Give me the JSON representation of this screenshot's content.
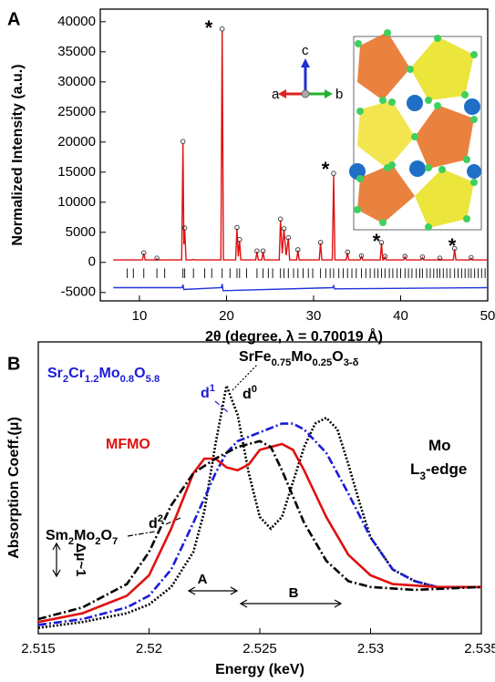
{
  "chart_data": [
    {
      "type": "line",
      "panel": "A",
      "ylabel": "Normalized Intensity (a.u.)",
      "xlabel": "2θ (degree, λ = 0.70019 Å)",
      "xlim": [
        5.5,
        50
      ],
      "xticks": [
        10,
        20,
        30,
        40,
        50
      ],
      "ylim": [
        -6400,
        42100
      ],
      "yticks": [
        -5000,
        0,
        5000,
        10000,
        15000,
        20000,
        25000,
        30000,
        35000,
        40000
      ],
      "annotations": [
        "*",
        "*",
        "*",
        "*"
      ],
      "inset_axes": [
        "a",
        "b",
        "c"
      ],
      "series": [
        {
          "style": "line",
          "color": "#e01010",
          "x": [
            7,
            10.35,
            10.5,
            10.65,
            11.85,
            12,
            12.15,
            14.85,
            15,
            15.1,
            15.2,
            15.35,
            16.05,
            16.2,
            16.35,
            17.35,
            17.5,
            17.65,
            19.35,
            19.5,
            19.65,
            21.05,
            21.2,
            21.35,
            21.5,
            21.65,
            23.35,
            23.5,
            23.65,
            24.05,
            24.2,
            24.35,
            26.05,
            26.2,
            26.4,
            26.6,
            26.85,
            27.1,
            27.25,
            28.05,
            28.2,
            28.35,
            30.65,
            30.8,
            30.95,
            32.15,
            32.3,
            32.45,
            33.75,
            33.9,
            34.05,
            35.35,
            35.5,
            35.65,
            37.65,
            37.8,
            37.95,
            38.05,
            38.2,
            38.35,
            40.35,
            40.5,
            40.65,
            42.35,
            42.5,
            42.65,
            44.35,
            44.5,
            44.65,
            46.05,
            46.2,
            46.35,
            47.95,
            48.1,
            48.25,
            50
          ],
          "values": [
            400,
            400,
            1500,
            400,
            400,
            600,
            400,
            400,
            19800,
            3000,
            5500,
            400,
            400,
            500,
            400,
            400,
            400,
            400,
            400,
            38500,
            400,
            400,
            5600,
            1000,
            3600,
            400,
            400,
            1800,
            400,
            400,
            1800,
            400,
            400,
            7000,
            1500,
            5500,
            1200,
            4000,
            400,
            400,
            2000,
            400,
            400,
            3200,
            400,
            400,
            14500,
            400,
            400,
            1600,
            400,
            400,
            1000,
            400,
            400,
            3200,
            400,
            400,
            900,
            400,
            400,
            900,
            400,
            400,
            800,
            400,
            400,
            600,
            400,
            400,
            2200,
            400,
            400,
            700,
            400,
            400
          ]
        },
        {
          "style": "markers",
          "color": "#333333",
          "x": [
            10.5,
            12,
            15,
            15.2,
            19.5,
            21.2,
            21.5,
            23.5,
            24.2,
            26.2,
            26.6,
            27.1,
            28.2,
            30.8,
            32.3,
            33.9,
            35.5,
            37.8,
            38.2,
            40.5,
            42.5,
            44.5,
            46.2,
            48.1
          ],
          "values": [
            1600,
            700,
            20100,
            5700,
            38800,
            5800,
            3800,
            1900,
            1900,
            7200,
            5600,
            4100,
            2100,
            3300,
            14800,
            1700,
            1100,
            3300,
            1000,
            1000,
            900,
            700,
            2300,
            800
          ]
        },
        {
          "style": "line",
          "color": "#2233dd",
          "x": [
            7,
            14.9,
            15,
            15.1,
            19.4,
            19.5,
            19.6,
            32.2,
            32.3,
            32.4,
            50
          ],
          "values": [
            -4200,
            -4200,
            -3700,
            -4500,
            -4200,
            -3600,
            -4700,
            -4200,
            -3900,
            -4400,
            -4200
          ]
        },
        {
          "style": "ticks",
          "color": "#000000",
          "x": [
            8.6,
            9.3,
            10.5,
            12,
            12.9,
            15,
            15.2,
            16.2,
            17.5,
            18.3,
            19.5,
            20.4,
            21.2,
            21.5,
            22.3,
            23.5,
            24.2,
            24.8,
            25.3,
            26.2,
            26.6,
            27.1,
            27.7,
            28.2,
            28.8,
            29.4,
            29.9,
            30.8,
            31.4,
            31.9,
            32.3,
            32.9,
            33.4,
            33.9,
            34.4,
            34.9,
            35.5,
            36.0,
            36.5,
            37.0,
            37.4,
            37.8,
            38.2,
            38.7,
            39.1,
            39.6,
            40.0,
            40.5,
            40.9,
            41.3,
            41.8,
            42.2,
            42.5,
            43.0,
            43.4,
            43.8,
            44.2,
            44.5,
            44.9,
            45.3,
            45.7,
            46.2,
            46.6,
            47.0,
            47.4,
            47.8,
            48.1,
            48.5,
            48.9,
            49.3,
            49.7
          ],
          "span": [
            -1000,
            -2600
          ]
        }
      ]
    },
    {
      "type": "line",
      "panel": "B",
      "xlabel": "Energy (keV)",
      "ylabel": "Absorption Coeff.(μ)",
      "xlim": [
        2.515,
        2.535
      ],
      "xticks": [
        2.515,
        2.52,
        2.525,
        2.53,
        2.535
      ],
      "ylim": [
        0,
        1
      ],
      "edge_label": [
        {
          "text": "Mo"
        }
      ],
      "edge_label2": [
        {
          "text": "L"
        },
        {
          "text": "3",
          "sub": true
        },
        {
          "text": "-edge"
        }
      ],
      "d_labels": [
        [
          {
            "text": "d"
          },
          {
            "text": "0",
            "sup": true
          }
        ],
        [
          {
            "text": "d"
          },
          {
            "text": "1",
            "sup": true
          }
        ],
        [
          {
            "text": "d"
          },
          {
            "text": "2",
            "sup": true
          }
        ]
      ],
      "delta_label": "Δμ~1",
      "regions": [
        "A",
        "B"
      ],
      "series": [
        {
          "name": [
            {
              "text": "SrFe"
            },
            {
              "text": "0.75",
              "sub": true
            },
            {
              "text": "Mo"
            },
            {
              "text": "0.25",
              "sub": true
            },
            {
              "text": "O"
            },
            {
              "text": "3-δ",
              "sub": true
            }
          ],
          "color": "#000000",
          "dash": "dotted",
          "x": [
            2.515,
            2.517,
            2.519,
            2.52,
            2.521,
            2.522,
            2.5225,
            2.523,
            2.5235,
            2.524,
            2.5245,
            2.525,
            2.5255,
            2.526,
            2.5265,
            2.527,
            2.5275,
            2.528,
            2.5285,
            2.529,
            2.5295,
            2.53,
            2.531,
            2.532,
            2.533,
            2.535
          ],
          "values": [
            0.02,
            0.04,
            0.07,
            0.1,
            0.16,
            0.28,
            0.42,
            0.65,
            0.85,
            0.75,
            0.55,
            0.4,
            0.36,
            0.4,
            0.52,
            0.64,
            0.72,
            0.74,
            0.7,
            0.58,
            0.45,
            0.33,
            0.22,
            0.18,
            0.16,
            0.16
          ]
        },
        {
          "name": [
            {
              "text": "Sr"
            },
            {
              "text": "2",
              "sub": true
            },
            {
              "text": "Cr"
            },
            {
              "text": "1.2",
              "sub": true
            },
            {
              "text": "Mo"
            },
            {
              "text": "0.8",
              "sub": true
            },
            {
              "text": "O"
            },
            {
              "text": "5.8",
              "sub": true
            }
          ],
          "color": "#1a1adb",
          "dash": "dashdot",
          "x": [
            2.515,
            2.517,
            2.519,
            2.52,
            2.521,
            2.522,
            2.523,
            2.5235,
            2.524,
            2.525,
            2.526,
            2.5265,
            2.527,
            2.528,
            2.529,
            2.53,
            2.531,
            2.532,
            2.533,
            2.535
          ],
          "values": [
            0.03,
            0.05,
            0.09,
            0.13,
            0.22,
            0.38,
            0.55,
            0.62,
            0.66,
            0.69,
            0.72,
            0.72,
            0.7,
            0.62,
            0.48,
            0.33,
            0.22,
            0.18,
            0.16,
            0.16
          ]
        },
        {
          "name": [
            {
              "text": "MFMO"
            }
          ],
          "color": "#e01010",
          "dash": "solid",
          "x": [
            2.515,
            2.517,
            2.519,
            2.52,
            2.521,
            2.522,
            2.5225,
            2.523,
            2.5235,
            2.524,
            2.5245,
            2.525,
            2.526,
            2.5265,
            2.527,
            2.528,
            2.529,
            2.53,
            2.531,
            2.533,
            2.535
          ],
          "values": [
            0.04,
            0.07,
            0.13,
            0.2,
            0.36,
            0.55,
            0.6,
            0.6,
            0.57,
            0.56,
            0.58,
            0.63,
            0.65,
            0.63,
            0.56,
            0.4,
            0.27,
            0.2,
            0.17,
            0.16,
            0.16
          ]
        },
        {
          "name": [
            {
              "text": "Sm"
            },
            {
              "text": "2",
              "sub": true
            },
            {
              "text": "Mo"
            },
            {
              "text": "2",
              "sub": true
            },
            {
              "text": "O"
            },
            {
              "text": "7",
              "sub": true
            }
          ],
          "color": "#000000",
          "dash": "dashdot",
          "x": [
            2.515,
            2.517,
            2.519,
            2.52,
            2.521,
            2.522,
            2.523,
            2.524,
            2.525,
            2.5255,
            2.526,
            2.527,
            2.528,
            2.529,
            2.53,
            2.532,
            2.535
          ],
          "values": [
            0.05,
            0.09,
            0.17,
            0.28,
            0.44,
            0.55,
            0.6,
            0.64,
            0.66,
            0.64,
            0.56,
            0.38,
            0.25,
            0.18,
            0.16,
            0.15,
            0.16
          ]
        }
      ]
    }
  ]
}
